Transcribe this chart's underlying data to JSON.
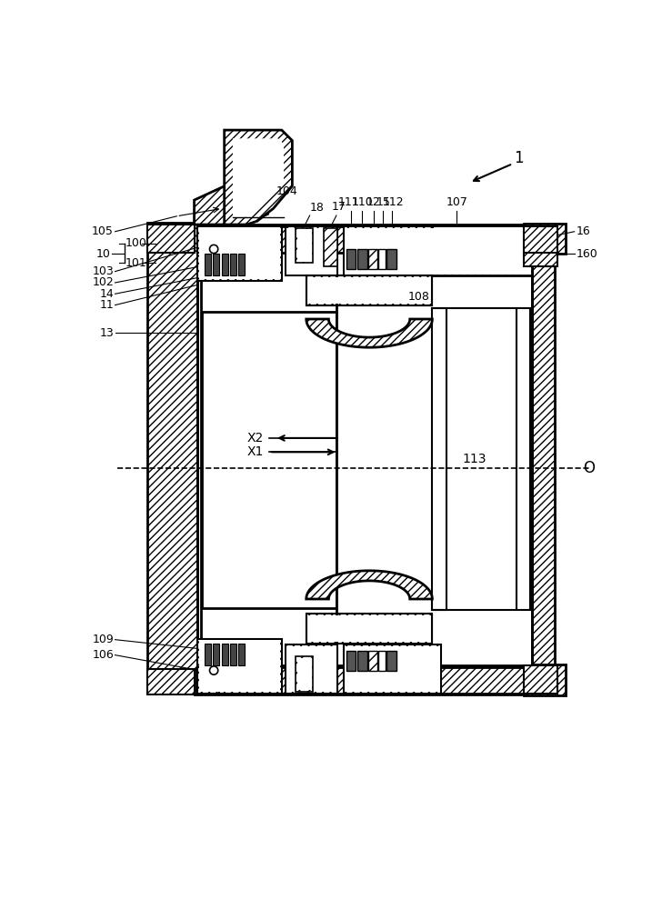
{
  "bg_color": "#ffffff",
  "line_color": "#000000",
  "label_1": "1",
  "label_10": "10",
  "label_100": "100",
  "label_101": "101",
  "label_102": "102",
  "label_103": "103",
  "label_104": "104",
  "label_105": "105",
  "label_106": "106",
  "label_107": "107",
  "label_108": "108",
  "label_109": "109",
  "label_11": "11",
  "label_110": "110",
  "label_111": "111",
  "label_112": "112",
  "label_113": "113",
  "label_13": "13",
  "label_14": "14",
  "label_15": "15",
  "label_16": "16",
  "label_160": "160",
  "label_17": "17",
  "label_18": "18",
  "label_12": "12",
  "label_X1": "X1",
  "label_X2": "X2",
  "label_O": "O"
}
